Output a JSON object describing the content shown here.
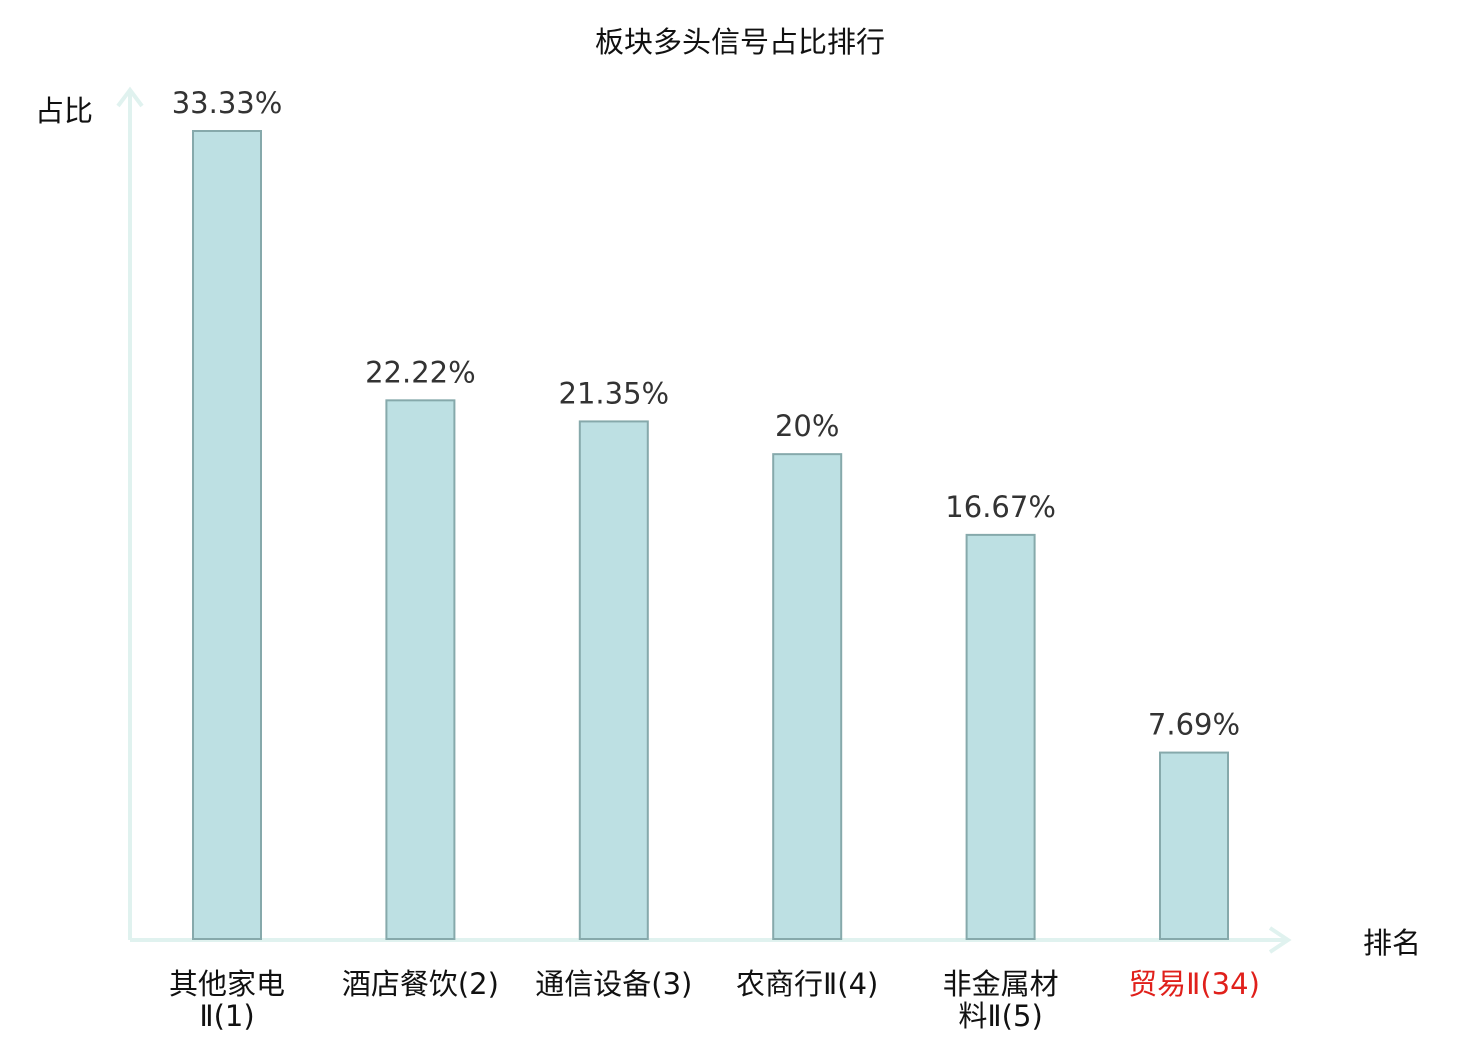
{
  "chart_data": {
    "type": "bar",
    "title": "板块多头信号占比排行",
    "xlabel": "排名",
    "ylabel": "占比",
    "categories": [
      [
        "其他家电",
        "Ⅱ(1)"
      ],
      [
        "酒店餐饮(2)"
      ],
      [
        "通信设备(3)"
      ],
      [
        "农商行Ⅱ(4)"
      ],
      [
        "非金属材",
        "料Ⅱ(5)"
      ],
      [
        "贸易Ⅱ(34)"
      ]
    ],
    "values": [
      33.33,
      22.22,
      21.35,
      20,
      16.67,
      7.69
    ],
    "value_labels": [
      "33.33%",
      "22.22%",
      "21.35%",
      "20%",
      "16.67%",
      "7.69%"
    ],
    "highlight_index": 5,
    "ylim": [
      0,
      35
    ],
    "grid": false,
    "colors": {
      "bar_fill": "#bde0e3",
      "bar_stroke": "#86a9ab",
      "axis": "#e0f2ef",
      "text": "#333333",
      "label": "#111111",
      "highlight": "#e0201b"
    }
  }
}
